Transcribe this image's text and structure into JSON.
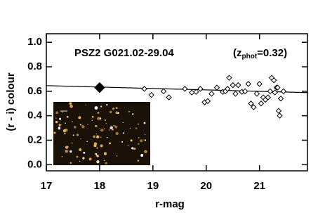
{
  "chart_data": {
    "type": "scatter",
    "title": "PSZ2 G021.02-29.04",
    "annotation": {
      "open": "(z",
      "subscript": "phot",
      "close": "=0.32)"
    },
    "xlabel": "r-mag",
    "ylabel": "(r - i) colour",
    "xlim": [
      17,
      21.9
    ],
    "ylim": [
      -0.05,
      1.07
    ],
    "xticks": [
      17,
      18,
      19,
      20,
      21
    ],
    "yticks": [
      {
        "value": 0,
        "label": "0.0"
      },
      {
        "value": 0.2,
        "label": "0.2"
      },
      {
        "value": 0.4,
        "label": "0.4"
      },
      {
        "value": 0.6,
        "label": "0.6"
      },
      {
        "value": 0.8,
        "label": "0.8"
      },
      {
        "value": 1,
        "label": "1.0"
      }
    ],
    "series": [
      {
        "type": "line",
        "color": "#000000",
        "x": [
          17,
          21.9
        ],
        "values": [
          0.646,
          0.589
        ]
      },
      {
        "marker": "open-diamond",
        "color": "#000000",
        "x": [
          18.84,
          18.97,
          19.2,
          19.3,
          19.6,
          19.73,
          19.81,
          19.89,
          19.97,
          20.03,
          20.1,
          20.2,
          20.31,
          20.36,
          20.4,
          20.43,
          20.5,
          20.55,
          20.6,
          20.67,
          20.73,
          20.79,
          20.84,
          20.89,
          20.95,
          21.0,
          21.03,
          21.07,
          21.11,
          21.16,
          21.2,
          21.23,
          21.27,
          21.29,
          21.32,
          21.34,
          21.36,
          21.38,
          21.4,
          21.45
        ],
        "values": [
          0.62,
          0.57,
          0.6,
          0.55,
          0.62,
          0.59,
          0.595,
          0.62,
          0.51,
          0.52,
          0.58,
          0.63,
          0.595,
          0.6,
          0.62,
          0.71,
          0.65,
          0.58,
          0.65,
          0.595,
          0.6,
          0.66,
          0.5,
          0.47,
          0.58,
          0.66,
          0.5,
          0.55,
          0.53,
          0.55,
          0.6,
          0.71,
          0.69,
          0.59,
          0.63,
          0.63,
          0.44,
          0.4,
          0.54,
          0.6
        ]
      },
      {
        "marker": "filled-diamond",
        "color": "#000000",
        "x": [
          18
        ],
        "values": [
          0.63
        ]
      }
    ]
  }
}
